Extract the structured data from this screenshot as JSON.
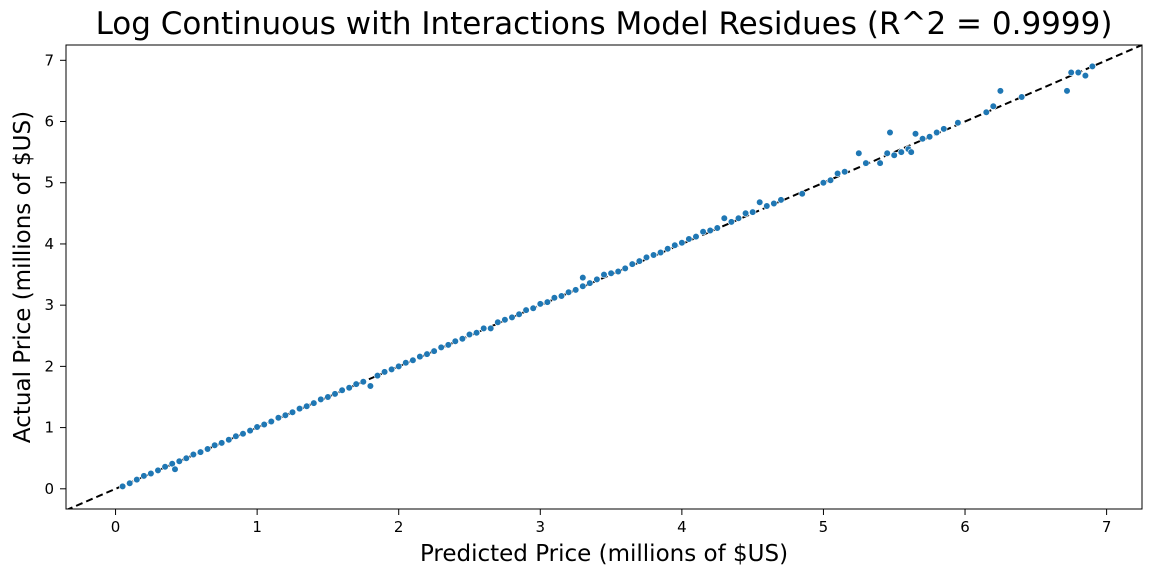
{
  "chart_data": {
    "type": "scatter",
    "title": "Log Continuous with Interactions Model Residues (R^2 = 0.9999)",
    "xlabel": "Predicted Price (millions of $US)",
    "ylabel": "Actual Price (millions of $US)",
    "xlim": [
      -0.35,
      7.25
    ],
    "ylim": [
      -0.33,
      7.25
    ],
    "xticks": [
      "0",
      "1",
      "2",
      "3",
      "4",
      "5",
      "6",
      "7"
    ],
    "yticks": [
      "0",
      "1",
      "2",
      "3",
      "4",
      "5",
      "6",
      "7"
    ],
    "grid": false,
    "reference_line": {
      "style": "dashed",
      "color": "#000000",
      "slope": 1,
      "intercept": 0
    },
    "colors": {
      "points": "#1f77b4",
      "point_edge": "#ffffff"
    },
    "series": [
      {
        "points": [
          [
            0.05,
            0.04
          ],
          [
            0.1,
            0.09
          ],
          [
            0.15,
            0.15
          ],
          [
            0.2,
            0.21
          ],
          [
            0.25,
            0.25
          ],
          [
            0.3,
            0.3
          ],
          [
            0.35,
            0.36
          ],
          [
            0.4,
            0.41
          ],
          [
            0.42,
            0.32
          ],
          [
            0.45,
            0.45
          ],
          [
            0.5,
            0.5
          ],
          [
            0.55,
            0.56
          ],
          [
            0.6,
            0.6
          ],
          [
            0.65,
            0.65
          ],
          [
            0.7,
            0.71
          ],
          [
            0.75,
            0.75
          ],
          [
            0.8,
            0.8
          ],
          [
            0.85,
            0.86
          ],
          [
            0.9,
            0.9
          ],
          [
            0.95,
            0.95
          ],
          [
            1.0,
            1.01
          ],
          [
            1.05,
            1.05
          ],
          [
            1.1,
            1.1
          ],
          [
            1.15,
            1.16
          ],
          [
            1.2,
            1.2
          ],
          [
            1.25,
            1.25
          ],
          [
            1.3,
            1.31
          ],
          [
            1.35,
            1.35
          ],
          [
            1.4,
            1.4
          ],
          [
            1.45,
            1.46
          ],
          [
            1.5,
            1.5
          ],
          [
            1.55,
            1.55
          ],
          [
            1.6,
            1.61
          ],
          [
            1.65,
            1.65
          ],
          [
            1.7,
            1.71
          ],
          [
            1.75,
            1.75
          ],
          [
            1.8,
            1.68
          ],
          [
            1.85,
            1.85
          ],
          [
            1.9,
            1.91
          ],
          [
            1.95,
            1.95
          ],
          [
            2.0,
            2.0
          ],
          [
            2.05,
            2.06
          ],
          [
            2.1,
            2.1
          ],
          [
            2.15,
            2.16
          ],
          [
            2.2,
            2.2
          ],
          [
            2.25,
            2.25
          ],
          [
            2.3,
            2.31
          ],
          [
            2.35,
            2.35
          ],
          [
            2.4,
            2.41
          ],
          [
            2.45,
            2.45
          ],
          [
            2.5,
            2.52
          ],
          [
            2.55,
            2.55
          ],
          [
            2.6,
            2.62
          ],
          [
            2.65,
            2.62
          ],
          [
            2.7,
            2.72
          ],
          [
            2.75,
            2.76
          ],
          [
            2.8,
            2.8
          ],
          [
            2.85,
            2.85
          ],
          [
            2.9,
            2.92
          ],
          [
            2.95,
            2.95
          ],
          [
            3.0,
            3.02
          ],
          [
            3.05,
            3.05
          ],
          [
            3.1,
            3.12
          ],
          [
            3.15,
            3.15
          ],
          [
            3.2,
            3.21
          ],
          [
            3.25,
            3.25
          ],
          [
            3.3,
            3.31
          ],
          [
            3.3,
            3.45
          ],
          [
            3.35,
            3.36
          ],
          [
            3.4,
            3.42
          ],
          [
            3.45,
            3.5
          ],
          [
            3.5,
            3.52
          ],
          [
            3.55,
            3.55
          ],
          [
            3.6,
            3.6
          ],
          [
            3.65,
            3.67
          ],
          [
            3.7,
            3.72
          ],
          [
            3.75,
            3.78
          ],
          [
            3.8,
            3.82
          ],
          [
            3.85,
            3.86
          ],
          [
            3.9,
            3.92
          ],
          [
            3.95,
            3.98
          ],
          [
            4.0,
            4.02
          ],
          [
            4.05,
            4.08
          ],
          [
            4.1,
            4.12
          ],
          [
            4.15,
            4.2
          ],
          [
            4.2,
            4.22
          ],
          [
            4.25,
            4.26
          ],
          [
            4.3,
            4.42
          ],
          [
            4.35,
            4.36
          ],
          [
            4.4,
            4.42
          ],
          [
            4.45,
            4.5
          ],
          [
            4.5,
            4.52
          ],
          [
            4.55,
            4.68
          ],
          [
            4.6,
            4.62
          ],
          [
            4.65,
            4.66
          ],
          [
            4.7,
            4.72
          ],
          [
            4.85,
            4.82
          ],
          [
            5.0,
            5.0
          ],
          [
            5.05,
            5.04
          ],
          [
            5.1,
            5.15
          ],
          [
            5.15,
            5.18
          ],
          [
            5.25,
            5.48
          ],
          [
            5.3,
            5.32
          ],
          [
            5.4,
            5.32
          ],
          [
            5.45,
            5.48
          ],
          [
            5.5,
            5.45
          ],
          [
            5.47,
            5.82
          ],
          [
            5.55,
            5.5
          ],
          [
            5.6,
            5.55
          ],
          [
            5.62,
            5.5
          ],
          [
            5.65,
            5.8
          ],
          [
            5.7,
            5.72
          ],
          [
            5.75,
            5.75
          ],
          [
            5.8,
            5.82
          ],
          [
            5.85,
            5.88
          ],
          [
            5.95,
            5.98
          ],
          [
            6.15,
            6.15
          ],
          [
            6.2,
            6.25
          ],
          [
            6.25,
            6.5
          ],
          [
            6.4,
            6.4
          ],
          [
            6.72,
            6.5
          ],
          [
            6.75,
            6.8
          ],
          [
            6.8,
            6.8
          ],
          [
            6.85,
            6.75
          ],
          [
            6.9,
            6.9
          ]
        ]
      }
    ]
  }
}
